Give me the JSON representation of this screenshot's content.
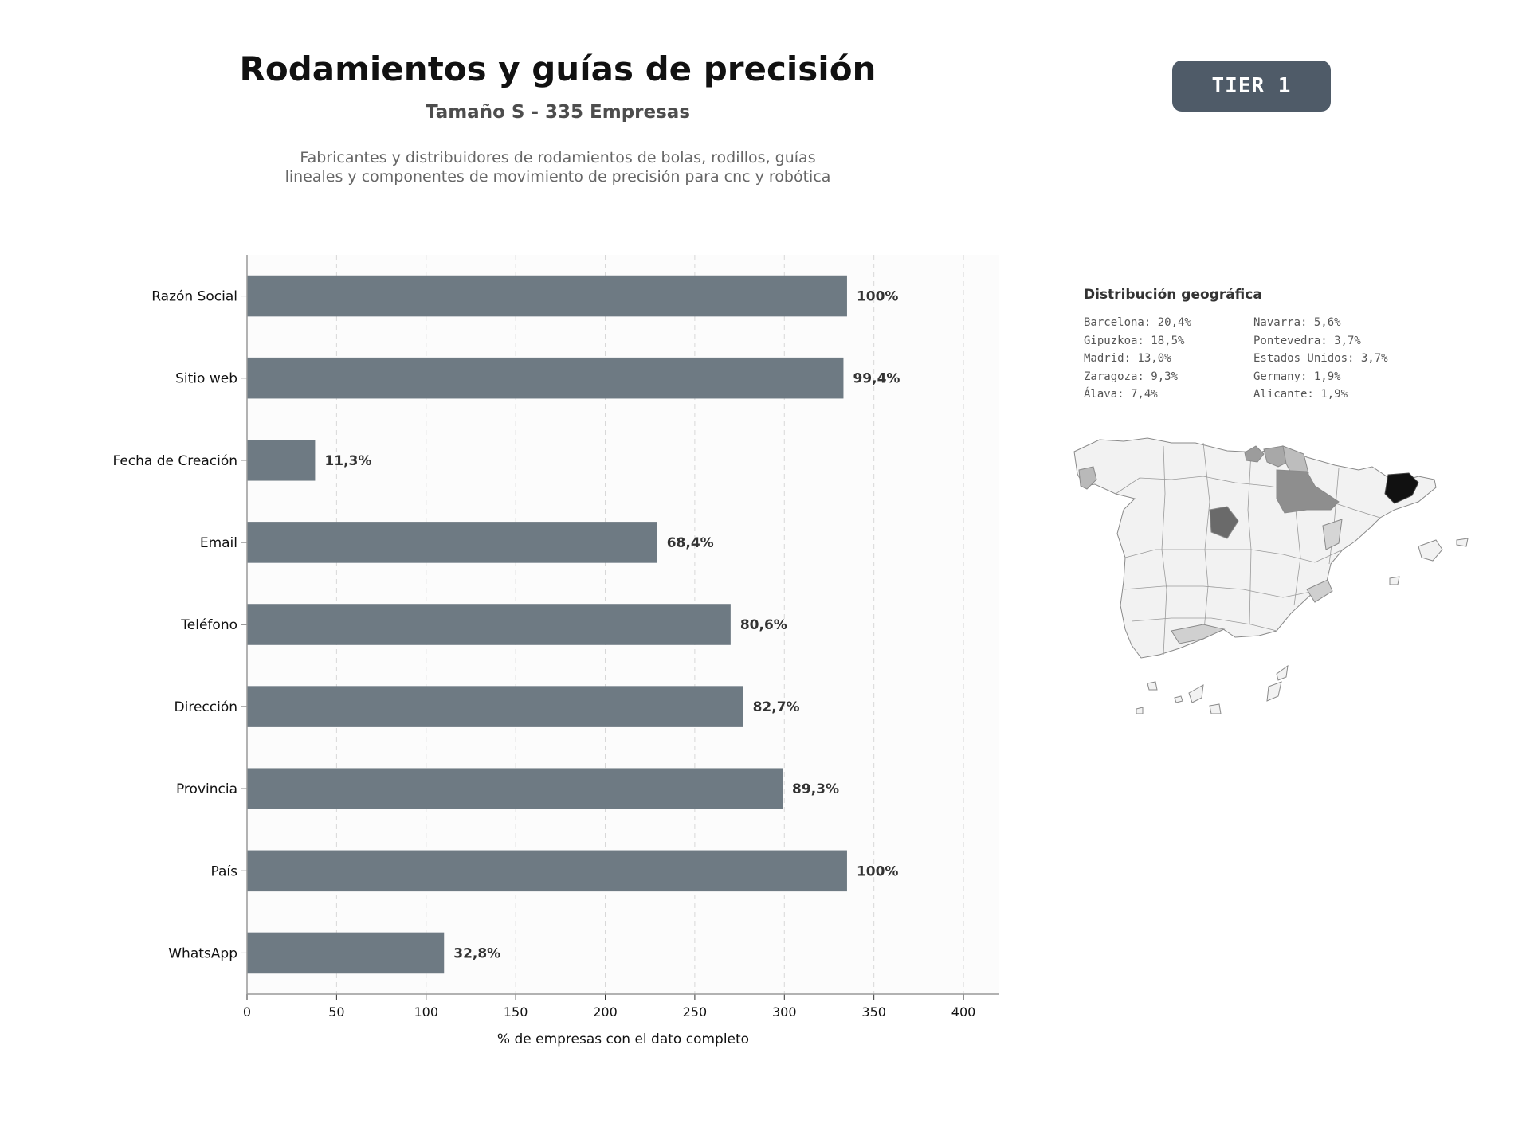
{
  "header": {
    "title": "Rodamientos y guías de precisión",
    "subtitle": "Tamaño S - 335 Empresas",
    "description_line1": "Fabricantes y distribuidores de rodamientos de bolas, rodillos, guías",
    "description_line2": "lineales y componentes de movimiento de precisión para cnc y robótica",
    "badge": "TIER 1"
  },
  "chart_data": {
    "type": "bar",
    "orientation": "horizontal",
    "categories": [
      "Razón Social",
      "Sitio web",
      "Fecha de Creación",
      "Email",
      "Teléfono",
      "Dirección",
      "Provincia",
      "País",
      "WhatsApp"
    ],
    "values": [
      335,
      333,
      38,
      229,
      270,
      277,
      299,
      335,
      110
    ],
    "data_labels": [
      "100%",
      "99,4%",
      "11,3%",
      "68,4%",
      "80,6%",
      "82,7%",
      "89,3%",
      "100%",
      "32,8%"
    ],
    "xlabel": "% de empresas con el dato completo",
    "ylabel": "",
    "xlim": [
      0,
      420
    ],
    "xticks": [
      0,
      50,
      100,
      150,
      200,
      250,
      300,
      350,
      400
    ],
    "grid": "vertical dashed",
    "bar_color": "#6e7a83"
  },
  "geo": {
    "title": "Distribución geográfica",
    "left_column": [
      "Barcelona: 20,4%",
      "Gipuzkoa: 18,5%",
      "Madrid: 13,0%",
      "Zaragoza: 9,3%",
      "Álava: 7,4%"
    ],
    "right_column": [
      "Navarra: 5,6%",
      "Pontevedra: 3,7%",
      "Estados Unidos: 3,7%",
      "Germany: 1,9%",
      "Alicante: 1,9%"
    ]
  }
}
